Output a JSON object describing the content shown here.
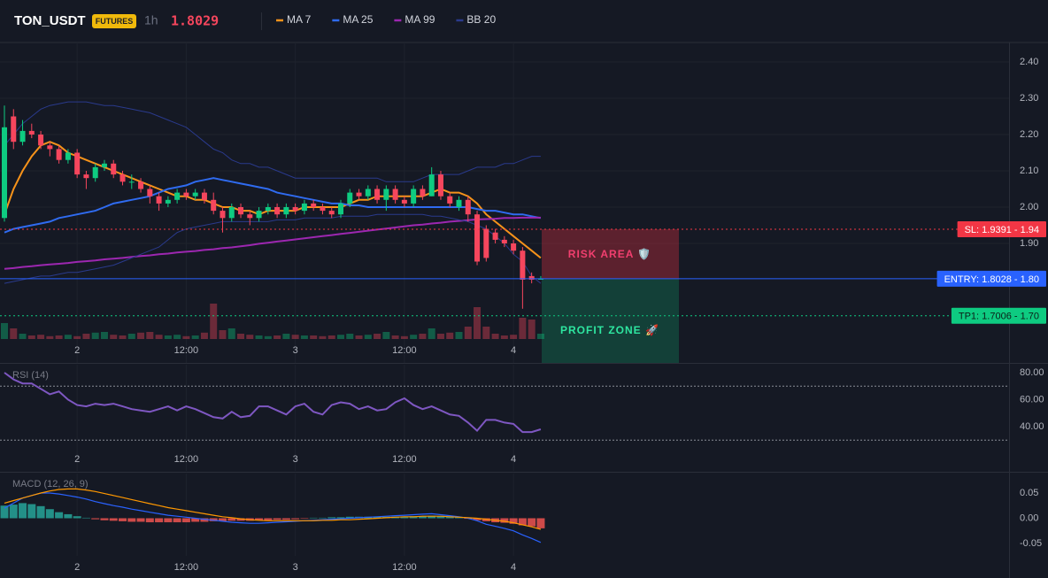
{
  "header": {
    "symbol": "TON_USDT",
    "badge": "FUTURES",
    "interval": "1h",
    "last_price": 1.8029
  },
  "chart_data": [
    {
      "type": "candlestick",
      "categories": [
        null,
        null,
        null,
        null,
        null,
        null,
        null,
        null,
        "2",
        null,
        null,
        null,
        null,
        null,
        null,
        null,
        null,
        null,
        null,
        null,
        "12:00",
        null,
        null,
        null,
        null,
        null,
        null,
        null,
        null,
        null,
        null,
        null,
        "3",
        null,
        null,
        null,
        null,
        null,
        null,
        null,
        null,
        null,
        null,
        null,
        "12:00",
        null,
        null,
        null,
        null,
        null,
        null,
        null,
        null,
        null,
        null,
        null,
        "4",
        null,
        null,
        null
      ],
      "open": [
        1.97,
        2.25,
        2.18,
        2.21,
        2.2,
        2.17,
        2.16,
        2.13,
        2.15,
        2.09,
        2.08,
        2.11,
        2.12,
        2.09,
        2.07,
        2.07,
        2.05,
        2.03,
        2.01,
        2.02,
        2.04,
        2.03,
        2.04,
        2.02,
        1.99,
        1.97,
        2.0,
        1.98,
        1.97,
        1.99,
        2.0,
        1.98,
        2.0,
        1.99,
        2.01,
        2.0,
        1.99,
        1.98,
        2.01,
        2.04,
        2.03,
        2.05,
        2.02,
        2.05,
        2.02,
        2.01,
        2.05,
        2.03,
        2.09,
        2.03,
        2.0,
        2.02,
        1.98,
        1.94,
        1.93,
        1.91,
        1.9,
        1.88,
        1.81,
        1.8
      ],
      "high": [
        2.28,
        2.27,
        2.24,
        2.23,
        2.21,
        2.18,
        2.17,
        2.16,
        2.16,
        2.1,
        2.12,
        2.13,
        2.13,
        2.1,
        2.09,
        2.08,
        2.06,
        2.04,
        2.03,
        2.05,
        2.05,
        2.05,
        2.05,
        2.04,
        2.0,
        2.01,
        2.01,
        1.99,
        2.0,
        2.01,
        2.01,
        2.01,
        2.01,
        2.02,
        2.02,
        2.01,
        2.0,
        2.02,
        2.05,
        2.05,
        2.06,
        2.06,
        2.06,
        2.06,
        2.03,
        2.06,
        2.06,
        2.11,
        2.1,
        2.04,
        2.03,
        2.03,
        1.99,
        1.95,
        1.94,
        1.92,
        1.91,
        1.89,
        1.82,
        1.81
      ],
      "low": [
        1.96,
        2.16,
        2.17,
        2.19,
        2.16,
        2.14,
        2.12,
        2.12,
        2.08,
        2.05,
        2.07,
        2.1,
        2.08,
        2.06,
        2.05,
        2.04,
        2.01,
        1.99,
        2.0,
        2.01,
        2.02,
        2.02,
        2.01,
        1.98,
        1.93,
        1.96,
        1.97,
        1.95,
        1.96,
        1.98,
        1.97,
        1.97,
        1.98,
        1.98,
        1.99,
        1.98,
        1.97,
        1.97,
        2.0,
        2.02,
        2.02,
        2.01,
        1.99,
        2.01,
        2.0,
        2.0,
        2.02,
        2.03,
        2.02,
        2.0,
        1.99,
        1.96,
        1.84,
        1.85,
        1.9,
        1.89,
        1.87,
        1.72,
        1.79,
        1.8
      ],
      "close": [
        2.22,
        2.18,
        2.21,
        2.2,
        2.17,
        2.16,
        2.13,
        2.15,
        2.09,
        2.08,
        2.11,
        2.12,
        2.09,
        2.07,
        2.07,
        2.05,
        2.03,
        2.01,
        2.02,
        2.04,
        2.03,
        2.04,
        2.02,
        1.99,
        1.97,
        2.0,
        1.98,
        1.97,
        1.99,
        2.0,
        1.98,
        2.0,
        1.99,
        2.01,
        2.0,
        1.99,
        1.98,
        2.01,
        2.04,
        2.03,
        2.05,
        2.02,
        2.05,
        2.02,
        2.01,
        2.05,
        2.03,
        2.09,
        2.03,
        2.01,
        2.02,
        1.98,
        1.85,
        1.86,
        1.91,
        1.9,
        1.88,
        1.8,
        1.8,
        1.8029
      ],
      "volume": [
        45,
        30,
        15,
        10,
        12,
        8,
        10,
        12,
        8,
        15,
        18,
        20,
        12,
        10,
        15,
        18,
        20,
        12,
        10,
        12,
        8,
        10,
        18,
        100,
        25,
        30,
        15,
        12,
        10,
        8,
        10,
        15,
        12,
        10,
        10,
        8,
        10,
        12,
        15,
        10,
        12,
        15,
        20,
        10,
        8,
        12,
        15,
        30,
        15,
        18,
        20,
        35,
        90,
        35,
        15,
        10,
        12,
        60,
        55,
        15
      ],
      "up_color": "#0ecb81",
      "down_color": "#f6465d",
      "series": [
        {
          "name": "MA 7",
          "color": "#f7931a",
          "values": [
            1.98,
            2.05,
            2.1,
            2.14,
            2.17,
            2.18,
            2.17,
            2.15,
            2.14,
            2.13,
            2.12,
            2.11,
            2.1,
            2.09,
            2.08,
            2.07,
            2.06,
            2.05,
            2.04,
            2.03,
            2.03,
            2.02,
            2.02,
            2.01,
            2.0,
            2.0,
            1.99,
            1.99,
            1.98,
            1.99,
            1.99,
            1.99,
            1.99,
            2.0,
            2.0,
            2.0,
            2.0,
            2.0,
            2.01,
            2.02,
            2.02,
            2.03,
            2.03,
            2.03,
            2.03,
            2.03,
            2.03,
            2.04,
            2.05,
            2.04,
            2.04,
            2.03,
            2.01,
            1.98,
            1.96,
            1.94,
            1.92,
            1.9,
            1.88,
            1.86
          ]
        },
        {
          "name": "MA 25",
          "color": "#2f6bf0",
          "values": [
            1.93,
            1.94,
            1.945,
            1.95,
            1.955,
            1.96,
            1.97,
            1.975,
            1.98,
            1.985,
            1.99,
            2.0,
            2.01,
            2.015,
            2.02,
            2.025,
            2.03,
            2.04,
            2.05,
            2.055,
            2.06,
            2.07,
            2.075,
            2.08,
            2.075,
            2.07,
            2.065,
            2.06,
            2.055,
            2.05,
            2.04,
            2.035,
            2.03,
            2.025,
            2.02,
            2.015,
            2.01,
            2.01,
            2.005,
            2.005,
            2.0,
            2.0,
            2.0,
            2.0,
            2.0,
            2.0,
            2.0,
            2.0,
            2.0,
            2.0,
            2.0,
            2.0,
            1.995,
            1.99,
            1.99,
            1.985,
            1.98,
            1.98,
            1.975,
            1.97
          ]
        },
        {
          "name": "MA 99",
          "color": "#9c27b0",
          "values": [
            1.83,
            1.832,
            1.835,
            1.837,
            1.84,
            1.842,
            1.844,
            1.846,
            1.849,
            1.851,
            1.853,
            1.856,
            1.858,
            1.86,
            1.863,
            1.865,
            1.867,
            1.87,
            1.872,
            1.875,
            1.877,
            1.879,
            1.882,
            1.884,
            1.887,
            1.889,
            1.892,
            1.895,
            1.899,
            1.902,
            1.905,
            1.908,
            1.911,
            1.914,
            1.917,
            1.92,
            1.923,
            1.926,
            1.929,
            1.932,
            1.935,
            1.938,
            1.941,
            1.944,
            1.947,
            1.95,
            1.952,
            1.955,
            1.957,
            1.96,
            1.962,
            1.964,
            1.966,
            1.967,
            1.968,
            1.97,
            1.97,
            1.971,
            1.971,
            1.971
          ]
        },
        {
          "name": "BB 20",
          "color": "#2a3a8c",
          "values": [
            2.17,
            2.2,
            2.23,
            2.25,
            2.27,
            2.28,
            2.285,
            2.29,
            2.29,
            2.29,
            2.285,
            2.28,
            2.28,
            2.275,
            2.27,
            2.265,
            2.26,
            2.25,
            2.24,
            2.23,
            2.22,
            2.2,
            2.18,
            2.16,
            2.15,
            2.13,
            2.12,
            2.12,
            2.11,
            2.11,
            2.1,
            2.09,
            2.08,
            2.08,
            2.08,
            2.08,
            2.08,
            2.08,
            2.08,
            2.08,
            2.08,
            2.08,
            2.07,
            2.07,
            2.07,
            2.07,
            2.08,
            2.09,
            2.09,
            2.09,
            2.09,
            2.1,
            2.11,
            2.11,
            2.11,
            2.12,
            2.12,
            2.13,
            2.14,
            2.14
          ],
          "lower": [
            1.79,
            1.795,
            1.8,
            1.805,
            1.81,
            1.81,
            1.815,
            1.82,
            1.82,
            1.825,
            1.83,
            1.835,
            1.84,
            1.85,
            1.86,
            1.87,
            1.88,
            1.89,
            1.91,
            1.93,
            1.94,
            1.945,
            1.95,
            1.955,
            1.96,
            1.96,
            1.96,
            1.96,
            1.96,
            1.96,
            1.965,
            1.965,
            1.965,
            1.97,
            1.97,
            1.97,
            1.97,
            1.975,
            1.975,
            1.975,
            1.975,
            1.98,
            1.98,
            1.98,
            1.98,
            1.98,
            1.98,
            1.975,
            1.975,
            1.97,
            1.965,
            1.96,
            1.95,
            1.94,
            1.92,
            1.9,
            1.87,
            1.85,
            1.81,
            1.79
          ]
        }
      ],
      "ylim": [
        1.5707,
        2.4537
      ],
      "yticks": [
        {
          "value": 2.4,
          "label": "2.40"
        },
        {
          "value": 2.3,
          "label": "2.30"
        },
        {
          "value": 2.2,
          "label": "2.20"
        },
        {
          "value": 2.1,
          "label": "2.10"
        },
        {
          "value": 2.0,
          "label": "2.00"
        },
        {
          "value": 1.9,
          "label": "1.90"
        }
      ],
      "grid": true,
      "levels": [
        {
          "label": "SL: 1.9391 - 1.94",
          "price": 1.9391,
          "color": "#f23645"
        },
        {
          "label": "ENTRY: 1.8028 - 1.80",
          "price": 1.8028,
          "color": "#2962ff"
        },
        {
          "label": "TP1: 1.7006 - 1.70",
          "price": 1.7006,
          "color": "#0ecb81"
        }
      ],
      "zones": [
        {
          "label": "RISK AREA 🛡️",
          "color": "#f23f6f"
        },
        {
          "label": "PROFIT ZONE 🚀",
          "color": "#2ee6a0"
        }
      ]
    },
    {
      "type": "line",
      "title": "RSI (14)",
      "color": "#7e57c2",
      "values": [
        80,
        75,
        72,
        72,
        68,
        64,
        66,
        60,
        56,
        55,
        57,
        56,
        57,
        55,
        53,
        52,
        51,
        53,
        55,
        52,
        55,
        53,
        50,
        47,
        46,
        51,
        47,
        48,
        55,
        55,
        52,
        49,
        55,
        57,
        51,
        49,
        56,
        58,
        57,
        53,
        55,
        52,
        53,
        58,
        61,
        56,
        53,
        55,
        52,
        49,
        48,
        43,
        37,
        45,
        45,
        43,
        42,
        36,
        36,
        38
      ],
      "ylim": [
        7.2,
        85.9
      ],
      "yticks": [
        {
          "value": 80,
          "label": "80.00"
        },
        {
          "value": 60,
          "label": "60.00"
        },
        {
          "value": 40,
          "label": "40.00"
        }
      ],
      "bands": [
        70,
        30
      ]
    },
    {
      "type": "macd",
      "title": "MACD (12, 26, 9)",
      "histogram": [
        0.025,
        0.027,
        0.03,
        0.028,
        0.024,
        0.018,
        0.012,
        0.008,
        0.004,
        0.001,
        -0.002,
        -0.004,
        -0.005,
        -0.006,
        -0.007,
        -0.007,
        -0.008,
        -0.008,
        -0.008,
        -0.008,
        -0.008,
        -0.007,
        -0.007,
        -0.006,
        -0.006,
        -0.005,
        -0.005,
        -0.005,
        -0.004,
        -0.004,
        -0.003,
        -0.003,
        -0.002,
        -0.001,
        0.001,
        0.001,
        0.002,
        0.002,
        0.003,
        0.003,
        0.003,
        0.003,
        0.003,
        0.003,
        0.003,
        0.004,
        0.004,
        0.005,
        0.004,
        0.003,
        0.002,
        -0.001,
        -0.004,
        -0.006,
        -0.008,
        -0.009,
        -0.011,
        -0.014,
        -0.016,
        -0.02
      ],
      "up_color": "#26a69a",
      "down_color": "#ef5350",
      "lines": [
        {
          "color": "#2962ff",
          "values": [
            0.02,
            0.03,
            0.04,
            0.045,
            0.05,
            0.05,
            0.048,
            0.045,
            0.042,
            0.038,
            0.033,
            0.029,
            0.025,
            0.022,
            0.018,
            0.015,
            0.012,
            0.009,
            0.006,
            0.004,
            0.002,
            0.0,
            -0.002,
            -0.004,
            -0.006,
            -0.008,
            -0.009,
            -0.01,
            -0.01,
            -0.009,
            -0.008,
            -0.007,
            -0.006,
            -0.005,
            -0.004,
            -0.003,
            -0.002,
            -0.001,
            0.0,
            0.001,
            0.002,
            0.003,
            0.004,
            0.005,
            0.006,
            0.007,
            0.008,
            0.009,
            0.007,
            0.005,
            0.003,
            0.0,
            -0.005,
            -0.012,
            -0.016,
            -0.02,
            -0.025,
            -0.033,
            -0.04,
            -0.048
          ]
        },
        {
          "color": "#ff9800",
          "values": [
            0.03,
            0.035,
            0.04,
            0.045,
            0.05,
            0.054,
            0.057,
            0.058,
            0.058,
            0.056,
            0.053,
            0.049,
            0.045,
            0.041,
            0.037,
            0.033,
            0.029,
            0.025,
            0.021,
            0.018,
            0.015,
            0.012,
            0.009,
            0.006,
            0.003,
            0.001,
            -0.001,
            -0.003,
            -0.004,
            -0.005,
            -0.005,
            -0.005,
            -0.005,
            -0.005,
            -0.005,
            -0.004,
            -0.004,
            -0.003,
            -0.003,
            -0.002,
            -0.001,
            0.0,
            0.001,
            0.002,
            0.003,
            0.003,
            0.004,
            0.004,
            0.004,
            0.003,
            0.002,
            0.001,
            0.0,
            -0.002,
            -0.004,
            -0.006,
            -0.009,
            -0.013,
            -0.017,
            -0.022
          ]
        }
      ],
      "ylim": [
        -0.0746,
        0.0886
      ],
      "yticks": [
        0.05,
        {
          "value": 0,
          "label": "0.00"
        },
        -0.05
      ]
    }
  ]
}
